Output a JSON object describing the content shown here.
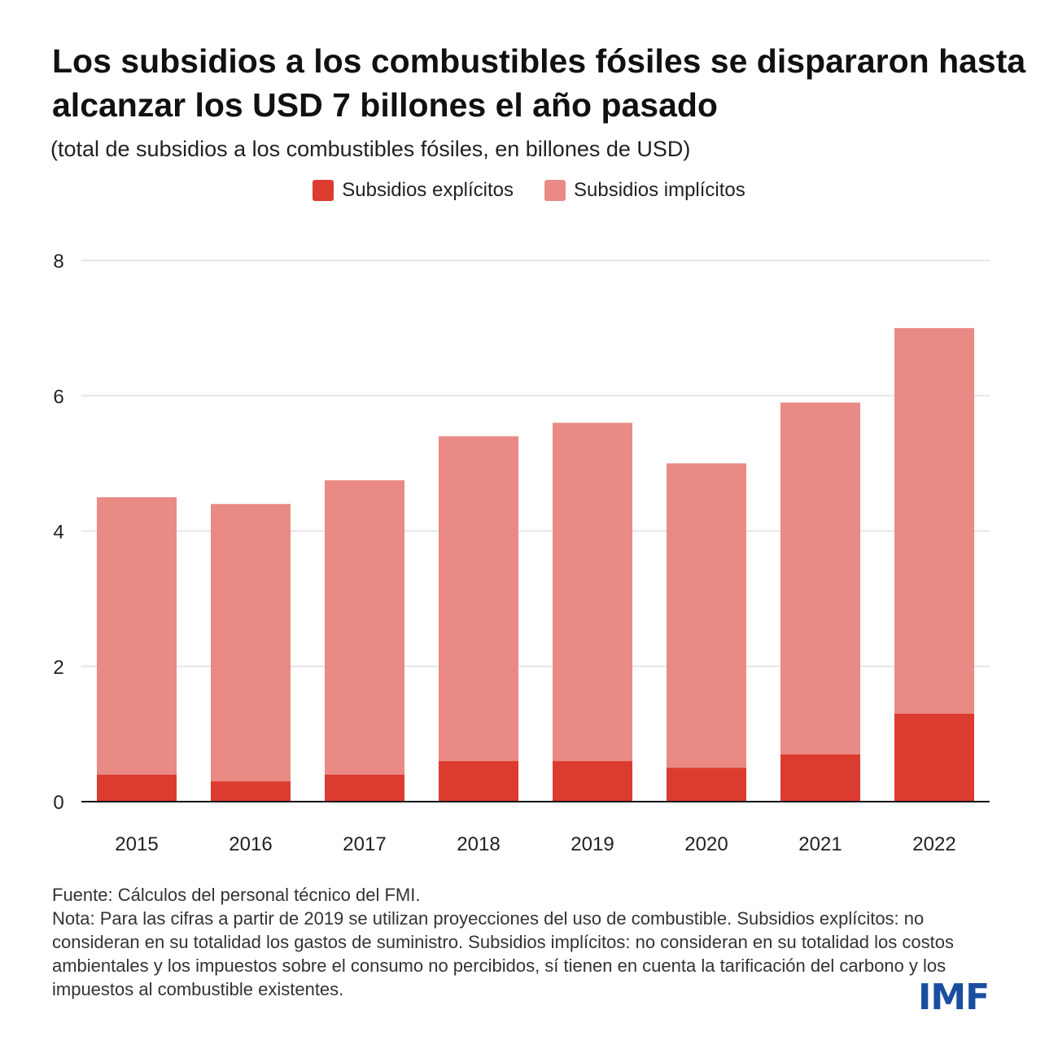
{
  "title": "Los subsidios a los combustibles fósiles se dispararon hasta alcanzar los USD 7 billones el año pasado",
  "subtitle": "(total de subsidios a los combustibles fósiles, en billones de USD)",
  "legend": {
    "explicit": "Subsidios explícitos",
    "implicit": "Subsidios implícitos"
  },
  "colors": {
    "explicit": "#dc3b30",
    "implicit": "#ea8a84",
    "grid": "#e6e6e6",
    "axis": "#111111",
    "logo": "#1a4fa0"
  },
  "chart_data": {
    "type": "bar",
    "stacked": true,
    "categories": [
      "2015",
      "2016",
      "2017",
      "2018",
      "2019",
      "2020",
      "2021",
      "2022"
    ],
    "series": [
      {
        "name": "Subsidios explícitos",
        "values": [
          0.4,
          0.3,
          0.4,
          0.6,
          0.6,
          0.5,
          0.7,
          1.3
        ]
      },
      {
        "name": "Subsidios implícitos",
        "values": [
          4.1,
          4.1,
          4.35,
          4.8,
          5.0,
          4.5,
          5.2,
          5.7
        ]
      }
    ],
    "totals": [
      4.5,
      4.4,
      4.75,
      5.4,
      5.6,
      5.0,
      5.9,
      7.0
    ],
    "yticks": [
      0,
      2,
      4,
      6,
      8
    ],
    "ylim": [
      0,
      8
    ],
    "grid": true,
    "legend_position": "top-center"
  },
  "footer": {
    "source": "Fuente: Cálculos del personal técnico del FMI.",
    "note": "Nota: Para las cifras a partir de 2019 se utilizan proyecciones del uso de combustible. Subsidios explícitos: no consideran en su totalidad los gastos de suministro. Subsidios implícitos: no consideran en su totalidad los costos ambientales y los impuestos sobre el consumo no percibidos, sí tienen en cuenta la tarificación del carbono y los impuestos al combustible existentes."
  },
  "logo": "IMF"
}
